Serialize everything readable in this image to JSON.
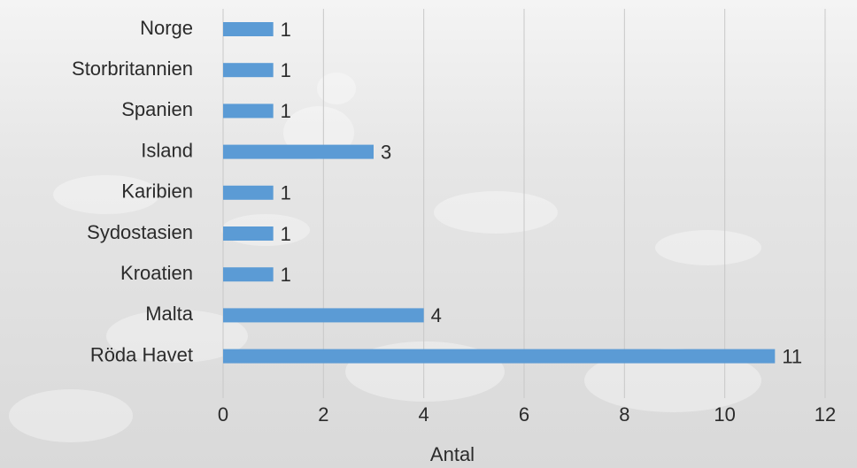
{
  "chart_data": {
    "type": "bar",
    "orientation": "horizontal",
    "categories": [
      "Norge",
      "Storbritannien",
      "Spanien",
      "Island",
      "Karibien",
      "Sydostasien",
      "Kroatien",
      "Malta",
      "Röda Havet"
    ],
    "values": [
      1,
      1,
      1,
      3,
      1,
      1,
      1,
      4,
      11
    ],
    "color": "#5b9bd5",
    "xlabel": "Antal",
    "xlim": [
      0,
      12
    ],
    "xticks": [
      0,
      2,
      4,
      6,
      8,
      10,
      12
    ],
    "grid": true
  }
}
